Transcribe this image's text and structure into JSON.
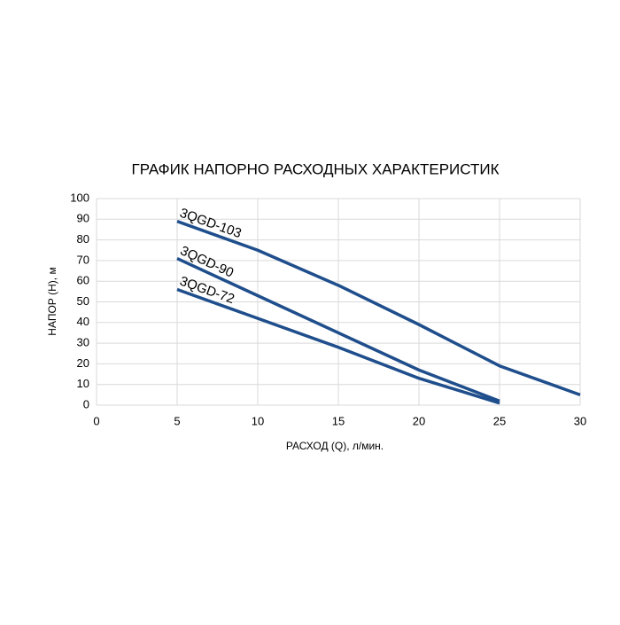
{
  "chart_data": {
    "type": "line",
    "title": "ГРАФИК НАПОРНО РАСХОДНЫХ ХАРАКТЕРИСТИК",
    "x_label": "РАСХОД (Q), л/мин.",
    "y_label": "НАПОР (Н), м",
    "series": [
      {
        "name": "3QGD-103",
        "color": "#1f4e8c",
        "x": [
          5,
          10,
          15,
          20,
          25,
          30
        ],
        "values": [
          89,
          75,
          58,
          39,
          19,
          5
        ]
      },
      {
        "name": "3QGD-90",
        "color": "#1f4e8c",
        "x": [
          5,
          10,
          15,
          20,
          25
        ],
        "values": [
          71,
          53,
          35,
          17,
          2
        ]
      },
      {
        "name": "3QGD-72",
        "color": "#1f4e8c",
        "x": [
          5,
          10,
          15,
          20,
          25
        ],
        "values": [
          56,
          42,
          28,
          13,
          1
        ]
      }
    ],
    "xlim": [
      0,
      30
    ],
    "xticks": [
      0,
      5,
      10,
      15,
      20,
      25,
      30
    ],
    "ylim": [
      0,
      100
    ],
    "yticks": [
      0,
      10,
      20,
      30,
      40,
      50,
      60,
      70,
      80,
      90,
      100
    ],
    "grid": true
  }
}
